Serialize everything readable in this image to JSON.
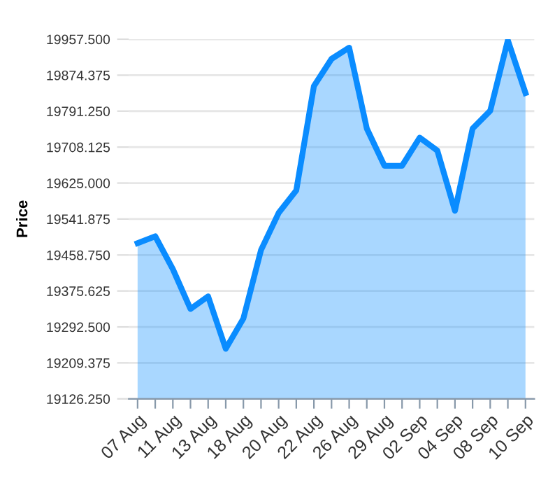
{
  "chart_data": {
    "type": "area",
    "ylabel": "Price",
    "categories": [
      "07 Aug",
      null,
      "11 Aug",
      null,
      "13 Aug",
      null,
      "18 Aug",
      null,
      "20 Aug",
      null,
      "22 Aug",
      null,
      "26 Aug",
      null,
      "29 Aug",
      null,
      "02 Sep",
      null,
      "04 Sep",
      null,
      "08 Sep",
      null,
      "10 Sep"
    ],
    "series": [
      {
        "color": "#0a8cff",
        "values": [
          19486,
          19502,
          19426,
          19334,
          19363,
          19242,
          19312,
          19470,
          19556,
          19608,
          19849,
          19912,
          19938,
          19751,
          19665,
          19665,
          19730,
          19700,
          19561,
          19751,
          19792,
          19955,
          19833
        ]
      }
    ],
    "ylim": [
      19126.25,
      19957.5
    ],
    "yticks": [
      {
        "value": 19126.25,
        "label": "19126.250"
      },
      {
        "value": 19209.375,
        "label": "19209.375"
      },
      {
        "value": 19292.5,
        "label": "19292.500"
      },
      {
        "value": 19375.625,
        "label": "19375.625"
      },
      {
        "value": 19458.75,
        "label": "19458.750"
      },
      {
        "value": 19541.875,
        "label": "19541.875"
      },
      {
        "value": 19625.0,
        "label": "19625.000"
      },
      {
        "value": 19708.125,
        "label": "19708.125"
      },
      {
        "value": 19791.25,
        "label": "19791.250"
      },
      {
        "value": 19874.375,
        "label": "19874.375"
      },
      {
        "value": 19957.5,
        "label": "19957.500"
      }
    ],
    "grid": "y",
    "legend": false
  }
}
